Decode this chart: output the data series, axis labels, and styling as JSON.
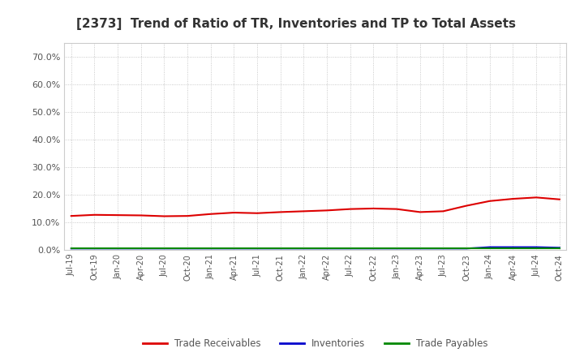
{
  "title": "[2373]  Trend of Ratio of TR, Inventories and TP to Total Assets",
  "title_fontsize": 11,
  "title_color": "#333333",
  "background_color": "#ffffff",
  "plot_bg_color": "#ffffff",
  "x_labels": [
    "Jul-19",
    "Oct-19",
    "Jan-20",
    "Apr-20",
    "Jul-20",
    "Oct-20",
    "Jan-21",
    "Apr-21",
    "Jul-21",
    "Oct-21",
    "Jan-22",
    "Apr-22",
    "Jul-22",
    "Oct-22",
    "Jan-23",
    "Apr-23",
    "Jul-23",
    "Oct-23",
    "Jan-24",
    "Apr-24",
    "Jul-24",
    "Oct-24"
  ],
  "trade_receivables": [
    0.123,
    0.127,
    0.126,
    0.125,
    0.122,
    0.123,
    0.13,
    0.135,
    0.133,
    0.137,
    0.14,
    0.143,
    0.148,
    0.15,
    0.148,
    0.137,
    0.14,
    0.16,
    0.177,
    0.185,
    0.19,
    0.183
  ],
  "inventories": [
    0.005,
    0.005,
    0.005,
    0.005,
    0.005,
    0.005,
    0.005,
    0.005,
    0.005,
    0.005,
    0.005,
    0.005,
    0.005,
    0.005,
    0.005,
    0.005,
    0.005,
    0.005,
    0.01,
    0.01,
    0.01,
    0.008
  ],
  "trade_payables": [
    0.006,
    0.006,
    0.006,
    0.006,
    0.006,
    0.006,
    0.006,
    0.006,
    0.006,
    0.006,
    0.006,
    0.006,
    0.006,
    0.006,
    0.006,
    0.006,
    0.006,
    0.006,
    0.006,
    0.006,
    0.006,
    0.006
  ],
  "tr_color": "#dd0000",
  "inv_color": "#0000cc",
  "tp_color": "#008800",
  "ylim": [
    0.0,
    0.75
  ],
  "yticks": [
    0.0,
    0.1,
    0.2,
    0.3,
    0.4,
    0.5,
    0.6,
    0.7
  ],
  "ytick_labels": [
    "0.0%",
    "10.0%",
    "20.0%",
    "30.0%",
    "40.0%",
    "50.0%",
    "60.0%",
    "70.0%"
  ],
  "grid_color": "#bbbbbb",
  "tick_color": "#555555",
  "legend_labels": [
    "Trade Receivables",
    "Inventories",
    "Trade Payables"
  ],
  "line_width": 1.5
}
